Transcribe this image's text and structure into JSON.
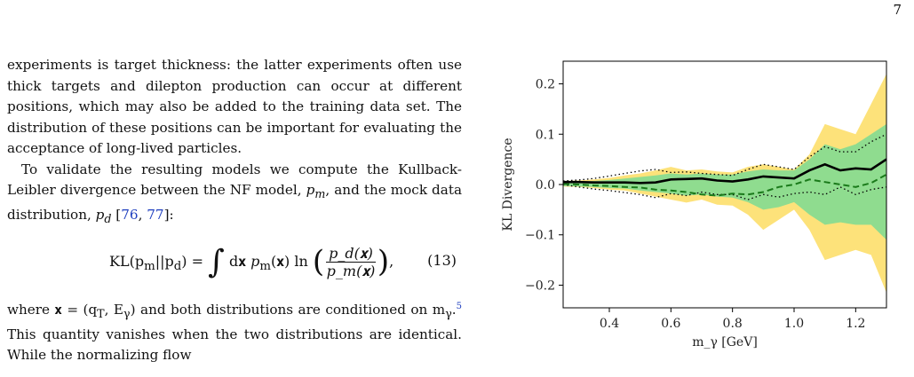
{
  "page_number": "7",
  "text": {
    "para1": "experiments is target thickness: the latter experiments often use thick targets and dilepton production can occur at different positions, which may also be added to the training data set. The distribution of these positions can be important for evaluating the acceptance of long-lived particles.",
    "para2_a": "To validate the resulting models we compute the Kullback-Leibler divergence between the NF model, ",
    "pm": "p",
    "pm_sub": "m",
    "para2_b": ", and the mock data distribution, ",
    "pd": "p",
    "pd_sub": "d",
    "para2_c": " [",
    "ref1": "76",
    "ref_sep": ", ",
    "ref2": "77",
    "para2_d": "]:",
    "eq_lhs": "KL(p",
    "eq_lhs_sub1": "m",
    "eq_lhs_mid": "||p",
    "eq_lhs_sub2": "d",
    "eq_lhs_end": ") = ",
    "eq_int": "∫",
    "eq_dx": "d𝐱 ",
    "eq_pm": "p",
    "eq_pm_sub": "m",
    "eq_pm_arg": "(𝐱) ln",
    "eq_frac_num": "p_d(𝐱)",
    "eq_frac_den": "p_m(𝐱)",
    "eq_end": ",",
    "eq_number": "(13)",
    "para3_a": "where 𝐱 = (q",
    "para3_qsub": "T",
    "para3_b": ", E",
    "para3_esub": "γ",
    "para3_c": ") and both distributions are conditioned on m",
    "para3_msub": "γ",
    "para3_d": ".",
    "footnote_mark": "5",
    "para3_e": " This quantity vanishes when the two distributions are identical. While the normalizing flow"
  },
  "chart_data": {
    "type": "area",
    "xlabel": "m_γ [GeV]",
    "ylabel": "KL Divergence",
    "xlim": [
      0.25,
      1.3
    ],
    "ylim": [
      -0.245,
      0.245
    ],
    "xticks": [
      "0.4",
      "0.6",
      "0.8",
      "1.0",
      "1.2"
    ],
    "xtick_values": [
      0.4,
      0.6,
      0.8,
      1.0,
      1.2
    ],
    "yticks": [
      "−0.2",
      "−0.1",
      "0.0",
      "0.1",
      "0.2"
    ],
    "ytick_values": [
      -0.2,
      -0.1,
      0.0,
      0.1,
      0.2
    ],
    "grid": false,
    "colors": {
      "band_outer": "#fde27a",
      "band_inner": "#8fdc8f",
      "median": "#000000",
      "dashed": "#1a7a1a",
      "dotted": "#000000"
    },
    "x": [
      0.25,
      0.3,
      0.35,
      0.4,
      0.45,
      0.5,
      0.55,
      0.6,
      0.65,
      0.7,
      0.75,
      0.8,
      0.85,
      0.9,
      0.95,
      1.0,
      1.05,
      1.1,
      1.15,
      1.2,
      1.25,
      1.3
    ],
    "series": [
      {
        "role": "outer_upper",
        "values": [
          0.007,
          0.008,
          0.01,
          0.013,
          0.018,
          0.022,
          0.028,
          0.035,
          0.028,
          0.03,
          0.026,
          0.024,
          0.035,
          0.04,
          0.035,
          0.03,
          0.06,
          0.12,
          0.11,
          0.1,
          0.16,
          0.22
        ]
      },
      {
        "role": "outer_lower",
        "values": [
          -0.004,
          -0.005,
          -0.007,
          -0.01,
          -0.012,
          -0.018,
          -0.024,
          -0.03,
          -0.036,
          -0.03,
          -0.04,
          -0.042,
          -0.06,
          -0.09,
          -0.07,
          -0.05,
          -0.09,
          -0.15,
          -0.14,
          -0.13,
          -0.14,
          -0.215
        ]
      },
      {
        "role": "inner_upper",
        "values": [
          0.005,
          0.006,
          0.007,
          0.009,
          0.012,
          0.015,
          0.018,
          0.022,
          0.02,
          0.022,
          0.02,
          0.02,
          0.026,
          0.03,
          0.028,
          0.028,
          0.05,
          0.08,
          0.07,
          0.08,
          0.1,
          0.12
        ]
      },
      {
        "role": "inner_lower",
        "values": [
          -0.003,
          -0.004,
          -0.005,
          -0.007,
          -0.008,
          -0.012,
          -0.015,
          -0.018,
          -0.022,
          -0.02,
          -0.024,
          -0.026,
          -0.035,
          -0.05,
          -0.045,
          -0.035,
          -0.06,
          -0.08,
          -0.075,
          -0.08,
          -0.08,
          -0.11
        ]
      },
      {
        "role": "median",
        "values": [
          0.005,
          0.005,
          0.004,
          0.004,
          0.004,
          0.003,
          0.004,
          0.01,
          0.011,
          0.012,
          0.008,
          0.006,
          0.01,
          0.016,
          0.014,
          0.012,
          0.028,
          0.04,
          0.028,
          0.032,
          0.03,
          0.05
        ]
      },
      {
        "role": "dashed",
        "values": [
          0.001,
          0.0,
          -0.002,
          -0.003,
          -0.005,
          -0.006,
          -0.01,
          -0.012,
          -0.015,
          -0.02,
          -0.022,
          -0.018,
          -0.02,
          -0.015,
          -0.005,
          0.0,
          0.01,
          0.005,
          0.0,
          -0.005,
          0.003,
          0.02
        ]
      },
      {
        "role": "dotted_upper",
        "values": [
          0.007,
          0.009,
          0.012,
          0.017,
          0.022,
          0.027,
          0.03,
          0.024,
          0.025,
          0.022,
          0.02,
          0.018,
          0.03,
          0.04,
          0.035,
          0.03,
          0.055,
          0.075,
          0.065,
          0.065,
          0.085,
          0.1
        ]
      },
      {
        "role": "dotted_lower",
        "values": [
          0.0,
          -0.005,
          -0.009,
          -0.012,
          -0.016,
          -0.02,
          -0.026,
          -0.018,
          -0.022,
          -0.015,
          -0.02,
          -0.02,
          -0.03,
          -0.02,
          -0.025,
          -0.018,
          -0.015,
          -0.02,
          -0.005,
          -0.02,
          -0.01,
          -0.005
        ]
      }
    ]
  }
}
